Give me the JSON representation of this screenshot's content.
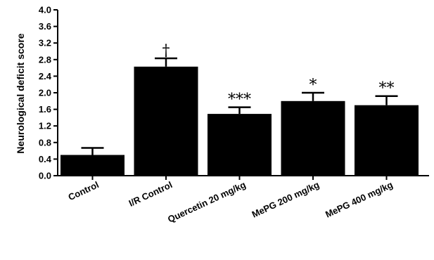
{
  "chart_data": {
    "type": "bar",
    "title": "",
    "xlabel": "",
    "ylabel": "Neurological deficit score",
    "ylim": [
      0,
      4.0
    ],
    "yticks": [
      "0.0",
      "0.4",
      "0.8",
      "1.2",
      "1.6",
      "2.0",
      "2.4",
      "2.8",
      "3.2",
      "3.6",
      "4.0"
    ],
    "categories": [
      "Control",
      "I/R Control",
      "Quercetin 20 mg/kg",
      "MePG 200 mg/kg",
      "MePG 400 mg/kg"
    ],
    "values": [
      0.5,
      2.63,
      1.49,
      1.8,
      1.7
    ],
    "errors": [
      0.17,
      0.2,
      0.16,
      0.2,
      0.22
    ],
    "annotations": [
      "",
      "†",
      "***",
      "*",
      "**"
    ],
    "bar_color": "#000000",
    "grid": false
  }
}
